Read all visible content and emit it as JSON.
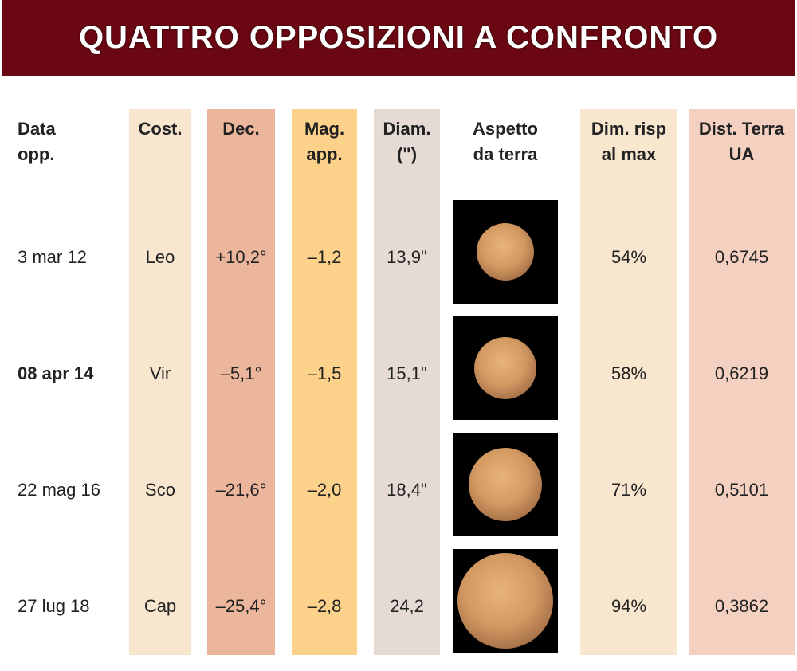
{
  "header": {
    "title": "QUATTRO OPPOSIZIONI A CONFRONTO"
  },
  "table": {
    "columns": [
      [
        "Data",
        "opp."
      ],
      [
        "Cost."
      ],
      [
        "Dec."
      ],
      [
        "Mag.",
        "app."
      ],
      [
        "Diam.",
        "(\")"
      ],
      [
        "Aspetto",
        "da terra"
      ],
      [
        "Dim. risp",
        "al max"
      ],
      [
        "Dist. Terra",
        "UA"
      ]
    ],
    "rows": [
      [
        "3 mar 12",
        "Leo",
        "+10,2°",
        "–1,2",
        "13,9\"",
        "54%",
        "0,6745"
      ],
      [
        "08 apr 14",
        "Vir",
        "–5,1°",
        "–1,5",
        "15,1\"",
        "58%",
        "0,6219"
      ],
      [
        "22 mag 16",
        "Sco",
        "–21,6°",
        "–2,0",
        "18,4\"",
        "71%",
        "0,5101"
      ],
      [
        "27 lug 18",
        "Cap",
        "–25,4°",
        "–2,8",
        "24,2",
        "94%",
        "0,3862"
      ]
    ]
  }
}
